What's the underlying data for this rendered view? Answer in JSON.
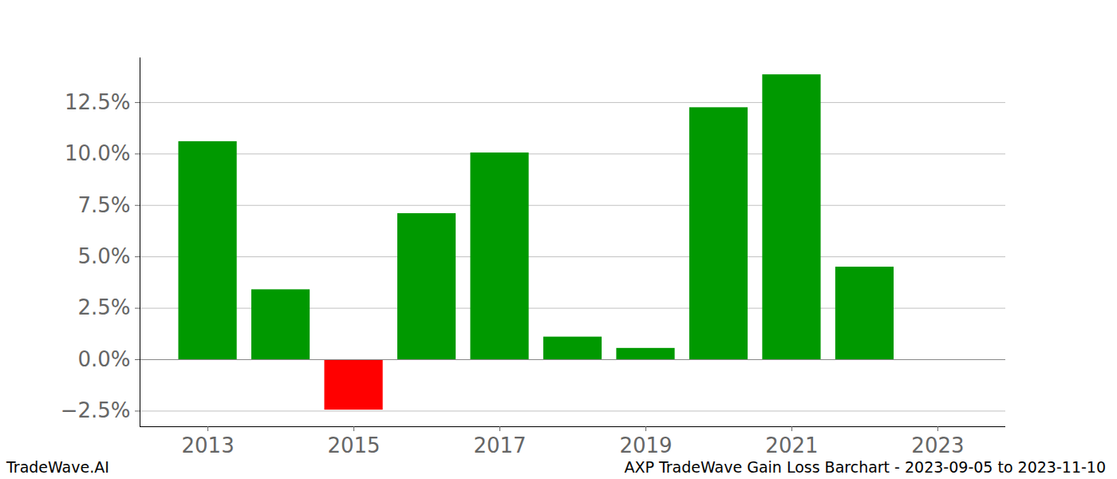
{
  "chart_data": {
    "type": "bar",
    "caption": "AXP TradeWave Gain Loss Barchart - 2023-09-05 to 2023-11-10",
    "source": "TradeWave.AI",
    "x": [
      2013,
      2014,
      2015,
      2016,
      2017,
      2018,
      2019,
      2020,
      2021,
      2022
    ],
    "values": [
      10.6,
      3.4,
      -2.45,
      7.1,
      10.05,
      1.1,
      0.55,
      12.25,
      13.85,
      4.5
    ],
    "colors": [
      "#009900",
      "#009900",
      "#ff0000",
      "#009900",
      "#009900",
      "#009900",
      "#009900",
      "#009900",
      "#009900",
      "#009900"
    ],
    "xlim": [
      2012.07,
      2023.93
    ],
    "xticks": [
      2013,
      2015,
      2017,
      2019,
      2021,
      2023
    ],
    "ylim": [
      -3.26,
      14.67
    ],
    "yticks": [
      {
        "value": -2.5,
        "label": "−2.5%"
      },
      {
        "value": 0,
        "label": "0.0%"
      },
      {
        "value": 2.5,
        "label": "2.5%"
      },
      {
        "value": 5,
        "label": "5.0%"
      },
      {
        "value": 7.5,
        "label": "7.5%"
      },
      {
        "value": 10,
        "label": "10.0%"
      },
      {
        "value": 12.5,
        "label": "12.5%"
      }
    ],
    "grid": true
  }
}
